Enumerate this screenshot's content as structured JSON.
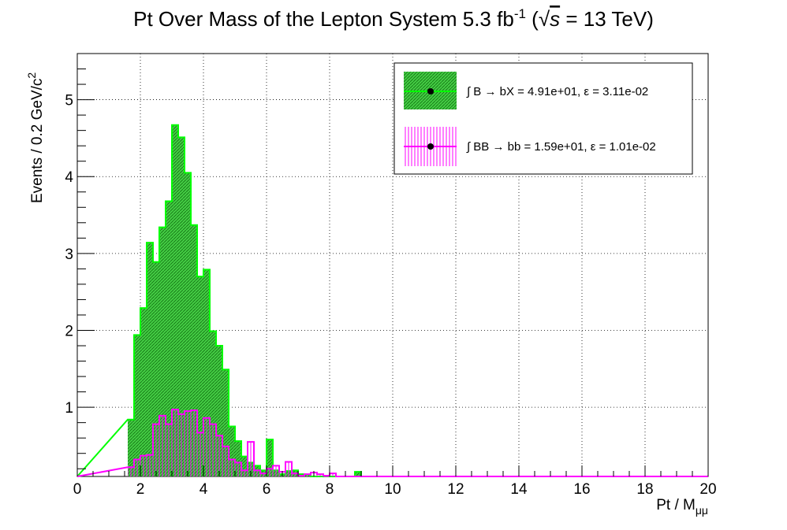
{
  "chart_data": {
    "type": "bar",
    "title": "Pt Over Mass of the Lepton System 5.3 fb",
    "title_sup": "-1",
    "title_suffix_open": " (",
    "title_sqrt_s": "s",
    "title_suffix_close": " = 13 TeV)",
    "xlabel": "Pt / M",
    "xlabel_sub": "μμ",
    "ylabel": "Events / 0.2 GeV/c",
    "ylabel_sup": "2",
    "xlim": [
      0,
      20
    ],
    "ylim": [
      0.1,
      5.6
    ],
    "bin_width": 0.2,
    "x_ticks": [
      "0",
      "2",
      "4",
      "6",
      "8",
      "10",
      "12",
      "14",
      "16",
      "18",
      "20"
    ],
    "y_ticks": [
      "1",
      "2",
      "3",
      "4",
      "5"
    ],
    "grid": true,
    "legend_position": "top-right",
    "series": [
      {
        "name": "∫ B → bX = 4.91e+01, ε = 3.11e-02",
        "color": "#00ff00",
        "fill": "#33cc33",
        "style": "hatched-fill",
        "x_start": [
          1.6,
          1.8,
          2.0,
          2.2,
          2.4,
          2.6,
          2.8,
          3.0,
          3.2,
          3.4,
          3.6,
          3.8,
          4.0,
          4.2,
          4.4,
          4.6,
          4.8,
          5.0,
          5.2,
          5.4,
          5.6,
          5.8,
          6.0,
          6.2,
          6.4,
          6.6,
          6.8,
          7.0,
          7.2,
          7.4,
          7.6,
          7.8,
          8.0,
          8.2,
          8.4,
          8.6,
          8.8,
          9.0
        ],
        "values": [
          0.84,
          1.94,
          2.29,
          3.14,
          2.89,
          3.34,
          3.68,
          4.67,
          4.51,
          4.05,
          3.37,
          2.7,
          2.79,
          1.99,
          1.8,
          1.49,
          0.75,
          0.56,
          0.36,
          0.28,
          0.24,
          0.18,
          0.58,
          0.18,
          0.13,
          0.17,
          0.18,
          0.13,
          0.12,
          0.1,
          0.1,
          0.11,
          0.1,
          0.1,
          0.1,
          0.1,
          0.16,
          0.1
        ]
      },
      {
        "name": "∫ BB → bb = 1.59e+01, ε = 1.01e-02",
        "color": "#ff00ff",
        "style": "vertical-hatch",
        "x_start": [
          1.6,
          1.8,
          2.0,
          2.2,
          2.4,
          2.6,
          2.8,
          3.0,
          3.2,
          3.4,
          3.6,
          3.8,
          4.0,
          4.2,
          4.4,
          4.6,
          4.8,
          5.0,
          5.2,
          5.4,
          5.6,
          5.8,
          6.0,
          6.2,
          6.4,
          6.6,
          6.8,
          7.0,
          7.2,
          7.4,
          7.6,
          7.8,
          8.0,
          8.2
        ],
        "values": [
          0.22,
          0.32,
          0.37,
          0.38,
          0.78,
          0.89,
          0.78,
          0.97,
          0.91,
          0.95,
          0.96,
          0.67,
          0.86,
          0.78,
          0.63,
          0.49,
          0.32,
          0.28,
          0.18,
          0.55,
          0.18,
          0.14,
          0.2,
          0.24,
          0.16,
          0.29,
          0.14,
          0.11,
          0.13,
          0.15,
          0.13,
          0.11,
          0.14,
          0.1
        ]
      }
    ]
  }
}
